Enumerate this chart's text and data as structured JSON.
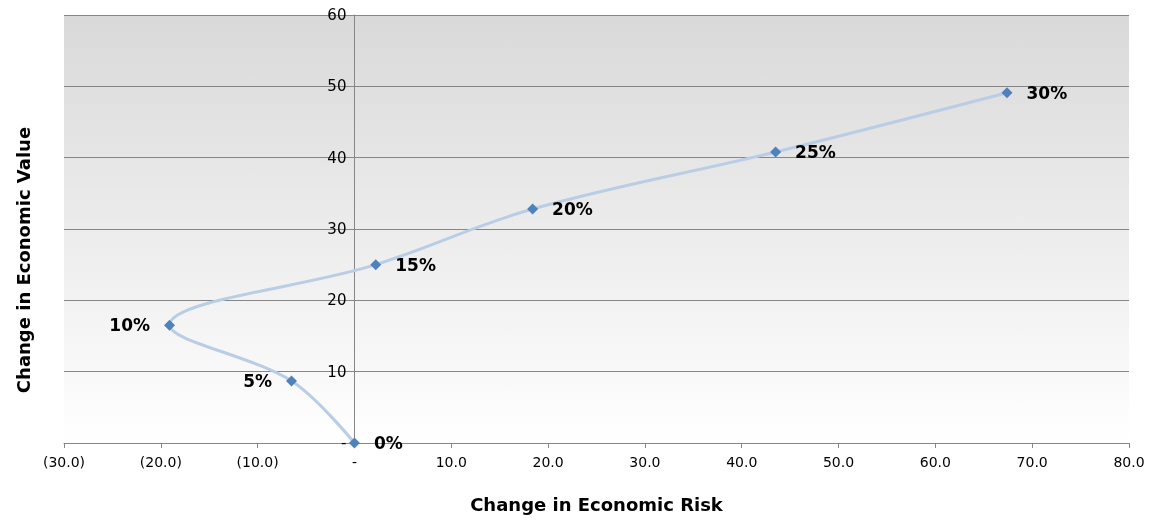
{
  "chart_data": {
    "type": "line",
    "xlabel": "Change in Economic Risk",
    "ylabel": "Change in Economic Value",
    "x": [
      0,
      -6.5,
      -19.1,
      2.2,
      18.4,
      43.5,
      67.4
    ],
    "series": [
      {
        "color": "#4f81bd",
        "values": [
          0,
          8.7,
          16.5,
          25.0,
          32.8,
          40.8,
          49.1
        ]
      }
    ],
    "annotations": [
      {
        "text": "0%",
        "x": 0,
        "y": 0
      },
      {
        "text": "5%",
        "x": -6.5,
        "y": 8.7
      },
      {
        "text": "10%",
        "x": -19.1,
        "y": 16.5
      },
      {
        "text": "15%",
        "x": 2.2,
        "y": 25.0
      },
      {
        "text": "20%",
        "x": 18.4,
        "y": 32.8
      },
      {
        "text": "25%",
        "x": 43.5,
        "y": 40.8
      },
      {
        "text": "30%",
        "x": 67.4,
        "y": 49.1
      }
    ],
    "xlim": [
      -30,
      80
    ],
    "xticks": [
      {
        "value": -30,
        "label": "(30.0)"
      },
      {
        "value": -20,
        "label": "(20.0)"
      },
      {
        "value": -10,
        "label": "(10.0)"
      },
      {
        "value": 0,
        "label": "-"
      },
      {
        "value": 10,
        "label": "10.0"
      },
      {
        "value": 20,
        "label": "20.0"
      },
      {
        "value": 30,
        "label": "30.0"
      },
      {
        "value": 40,
        "label": "40.0"
      },
      {
        "value": 50,
        "label": "50.0"
      },
      {
        "value": 60,
        "label": "60.0"
      },
      {
        "value": 70,
        "label": "70.0"
      },
      {
        "value": 80,
        "label": "80.0"
      }
    ],
    "ylim": [
      0,
      60
    ],
    "yticks": [
      {
        "value": 0,
        "label": "-"
      },
      10,
      20,
      30,
      40,
      50,
      60
    ],
    "grid": "y",
    "marker": "diamond",
    "line_style": "solid"
  }
}
